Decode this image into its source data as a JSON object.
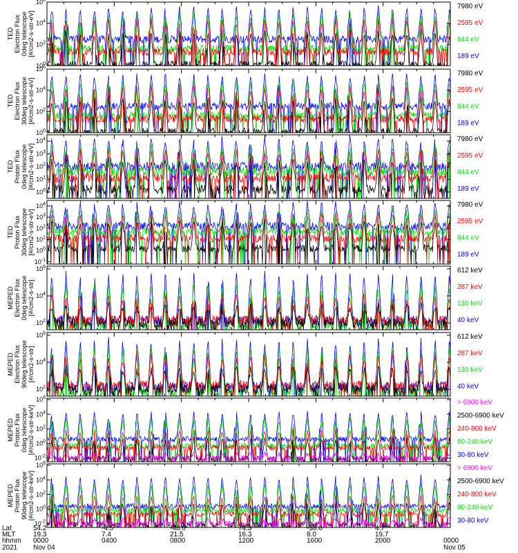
{
  "figure": {
    "footer_rows": [
      {
        "label": "Lat",
        "values": [
          "54.2",
          "-4.5",
          "-48.6",
          "74.3",
          "-38.0",
          "4.7",
          ""
        ]
      },
      {
        "label": "MLT",
        "values": [
          "19.3",
          "7.4",
          "21.5",
          "16.3",
          "8.0",
          "19.7",
          ""
        ]
      },
      {
        "label": "hhmm",
        "values": [
          "0000",
          "0400",
          "0800",
          "1200",
          "1600",
          "2000",
          "0000"
        ]
      },
      {
        "label": "2021",
        "values": [
          "Nov 04",
          "",
          "",
          "",
          "",
          "",
          "Nov 05"
        ]
      }
    ]
  },
  "chart_data": [
    {
      "type": "line",
      "ylabel": [
        "TED",
        "Electron Flux",
        "0deg telescope",
        "[#/cm2-s-str-eV]"
      ],
      "y_scale": "log",
      "yticks": [
        "10^6",
        "10^4",
        "10^2",
        "10^0"
      ],
      "ylim_exp": [
        0,
        6
      ],
      "series": [
        {
          "name": "7980 eV",
          "color": "#000000",
          "base_exp": 0.1,
          "peak_exp": 3.2
        },
        {
          "name": "2595 eV",
          "color": "#ff0000",
          "base_exp": 1.3,
          "peak_exp": 4.3
        },
        {
          "name": "844 eV",
          "color": "#00dd00",
          "base_exp": 1.6,
          "peak_exp": 4.9
        },
        {
          "name": "189 eV",
          "color": "#0000ff",
          "base_exp": 2.5,
          "peak_exp": 5.5
        }
      ]
    },
    {
      "type": "line",
      "ylabel": [
        "TED",
        "Electron Flux",
        "30deg telescope",
        "[#/cm2-s-str-eV]"
      ],
      "y_scale": "log",
      "yticks": [
        "10^6",
        "10^4",
        "10^2",
        "10^0"
      ],
      "ylim_exp": [
        0,
        6
      ],
      "series": [
        {
          "name": "7980 eV",
          "color": "#000000",
          "base_exp": 0.1,
          "peak_exp": 3.2
        },
        {
          "name": "2595 eV",
          "color": "#ff0000",
          "base_exp": 1.3,
          "peak_exp": 4.3
        },
        {
          "name": "844 eV",
          "color": "#00dd00",
          "base_exp": 1.6,
          "peak_exp": 4.9
        },
        {
          "name": "189 eV",
          "color": "#0000ff",
          "base_exp": 2.5,
          "peak_exp": 5.5
        }
      ]
    },
    {
      "type": "line",
      "ylabel": [
        "TED",
        "Proton Flux",
        "0deg telescope",
        "[#/cm2-s-str-eV]"
      ],
      "y_scale": "log",
      "yticks": [
        "10^4",
        "10^3",
        "10^2",
        "10^1",
        "10^0"
      ],
      "ylim_exp": [
        -0.5,
        4.5
      ],
      "series": [
        {
          "name": "7980 eV",
          "color": "#000000",
          "base_exp": 0.2,
          "peak_exp": 2.6
        },
        {
          "name": "2595 eV",
          "color": "#ff0000",
          "base_exp": 1.1,
          "peak_exp": 3.2
        },
        {
          "name": "844 eV",
          "color": "#00dd00",
          "base_exp": 1.6,
          "peak_exp": 3.6
        },
        {
          "name": "189 eV",
          "color": "#0000ff",
          "base_exp": 2.0,
          "peak_exp": 4.2
        }
      ]
    },
    {
      "type": "line",
      "ylabel": [
        "TED",
        "Proton Flux",
        "30deg telescope",
        "[#/cm2-s-str-eV]"
      ],
      "y_scale": "log",
      "yticks": [
        "10^4",
        "10^3",
        "10^2",
        "10^1",
        "10^0",
        "10^-1"
      ],
      "ylim_exp": [
        -1.2,
        4.5
      ],
      "series": [
        {
          "name": "7980 eV",
          "color": "#000000",
          "base_exp": 0.2,
          "peak_exp": 2.6
        },
        {
          "name": "2595 eV",
          "color": "#ff0000",
          "base_exp": 1.1,
          "peak_exp": 3.2
        },
        {
          "name": "844 eV",
          "color": "#00dd00",
          "base_exp": 1.7,
          "peak_exp": 3.6
        },
        {
          "name": "189 eV",
          "color": "#0000ff",
          "base_exp": 2.2,
          "peak_exp": 4.2
        }
      ]
    },
    {
      "type": "line",
      "ylabel": [
        "MEPED",
        "Electron Flux",
        "0deg telescope",
        "[#/cm2-s-str]"
      ],
      "y_scale": "log",
      "yticks": [
        "10^6",
        "10^4",
        "10^2"
      ],
      "ylim_exp": [
        1.5,
        6.2
      ],
      "series": [
        {
          "name": "612 keV",
          "color": "#000000",
          "base_exp": 2.0,
          "peak_exp": 3.3
        },
        {
          "name": "287 keV",
          "color": "#ff0000",
          "base_exp": 2.2,
          "peak_exp": 4.0
        },
        {
          "name": "130 keV",
          "color": "#00dd00",
          "base_exp": 1.8,
          "peak_exp": 4.8
        },
        {
          "name": "40 keV",
          "color": "#0000ff",
          "base_exp": 2.2,
          "peak_exp": 5.6
        }
      ]
    },
    {
      "type": "line",
      "ylabel": [
        "MEPED",
        "Electron Flux",
        "90deg telescope",
        "[#/cm2-s-str]"
      ],
      "y_scale": "log",
      "yticks": [
        "10^6",
        "10^4",
        "10^2"
      ],
      "ylim_exp": [
        1.5,
        6.2
      ],
      "series": [
        {
          "name": "612 keV",
          "color": "#000000",
          "base_exp": 2.0,
          "peak_exp": 3.6
        },
        {
          "name": "287 keV",
          "color": "#ff0000",
          "base_exp": 2.3,
          "peak_exp": 4.4
        },
        {
          "name": "130 keV",
          "color": "#00dd00",
          "base_exp": 1.8,
          "peak_exp": 5.0
        },
        {
          "name": "40 keV",
          "color": "#0000ff",
          "base_exp": 2.2,
          "peak_exp": 5.6
        }
      ]
    },
    {
      "type": "line",
      "ylabel": [
        "MEPED",
        "Proton Flux",
        "0deg telescope",
        "[#/cm2-s-str-keV]"
      ],
      "y_scale": "log",
      "yticks": [
        "10^6",
        "10^4",
        "10^2",
        "10^0",
        "10^-2"
      ],
      "ylim_exp": [
        -2.5,
        6.2
      ],
      "series": [
        {
          "name": "> 6900 keV",
          "color": "#ff00ff",
          "base_exp": -2.0,
          "peak_exp": -1.3
        },
        {
          "name": "2500-6900 keV",
          "color": "#000000",
          "base_exp": -2.1,
          "peak_exp": 0.8
        },
        {
          "name": "240-800 keV",
          "color": "#ff0000",
          "base_exp": -0.6,
          "peak_exp": 1.8
        },
        {
          "name": "80-240 keV",
          "color": "#00dd00",
          "base_exp": -0.3,
          "peak_exp": 3.4
        },
        {
          "name": "30-80 keV",
          "color": "#0000ff",
          "base_exp": 0.6,
          "peak_exp": 4.3
        }
      ]
    },
    {
      "type": "line",
      "ylabel": [
        "MEPED",
        "Proton Flux",
        "90deg telescope",
        "[#/cm2-s-str-keV]"
      ],
      "y_scale": "log",
      "yticks": [
        "10^6",
        "10^4",
        "10^2",
        "10^0",
        "10^-2"
      ],
      "ylim_exp": [
        -2.5,
        6.2
      ],
      "series": [
        {
          "name": "> 6900 keV",
          "color": "#ff00ff",
          "base_exp": -2.0,
          "peak_exp": -1.3
        },
        {
          "name": "2500-6900 keV",
          "color": "#000000",
          "base_exp": -2.1,
          "peak_exp": 0.8
        },
        {
          "name": "240-800 keV",
          "color": "#ff0000",
          "base_exp": -0.7,
          "peak_exp": 1.8
        },
        {
          "name": "80-240 keV",
          "color": "#00dd00",
          "base_exp": -0.2,
          "peak_exp": 3.4
        },
        {
          "name": "30-80 keV",
          "color": "#0000ff",
          "base_exp": 0.4,
          "peak_exp": 4.5
        }
      ]
    }
  ]
}
